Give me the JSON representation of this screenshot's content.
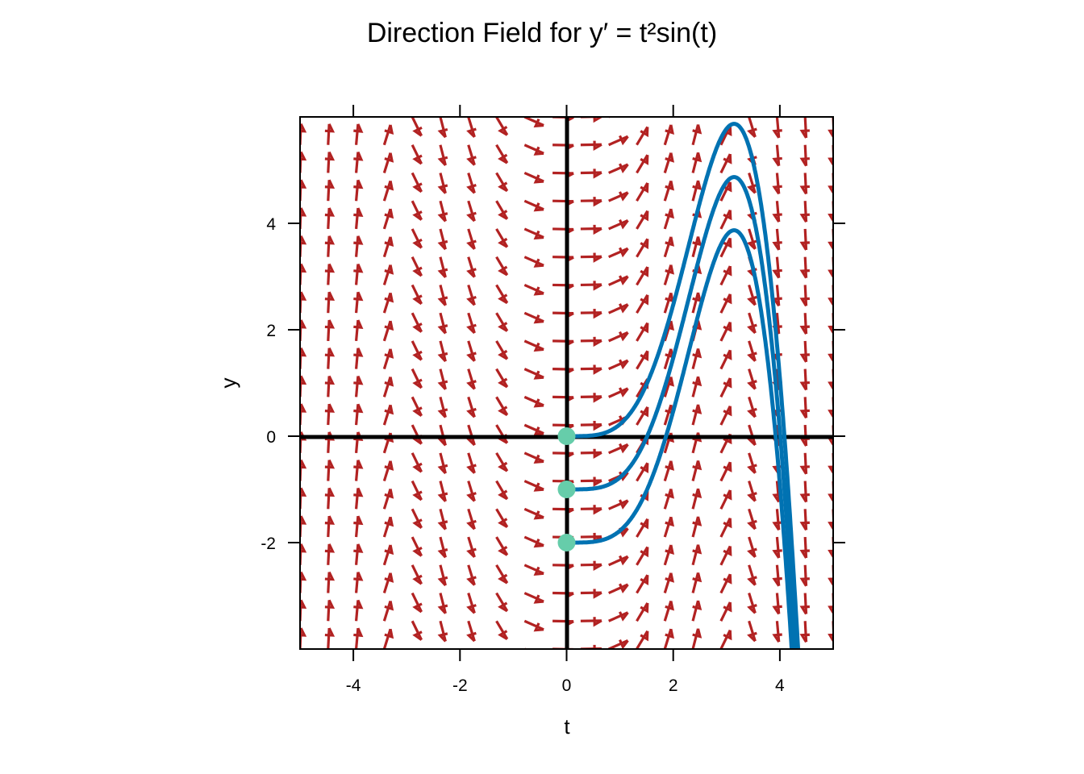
{
  "chart_data": {
    "type": "vector-field",
    "title": "Direction Field for y′ = t²sin(t)",
    "equation": "y' = t^2 sin(t)",
    "xlabel": "t",
    "ylabel": "y",
    "xlim": [
      -5,
      5
    ],
    "ylim": [
      -4,
      6
    ],
    "xticks": [
      -4,
      -2,
      0,
      2,
      4
    ],
    "yticks": [
      -2,
      0,
      2,
      4
    ],
    "field_grid": {
      "nt": 20,
      "ny": 20
    },
    "initial_conditions": [
      {
        "t0": 0,
        "y0": 0
      },
      {
        "t0": 0,
        "y0": -1
      },
      {
        "t0": 0,
        "y0": -2
      }
    ],
    "grid": false,
    "colors": {
      "arrows": "#B22222",
      "solutions": "#0072B2",
      "initial_points": "#66CDAA",
      "axes": "#000000"
    }
  }
}
